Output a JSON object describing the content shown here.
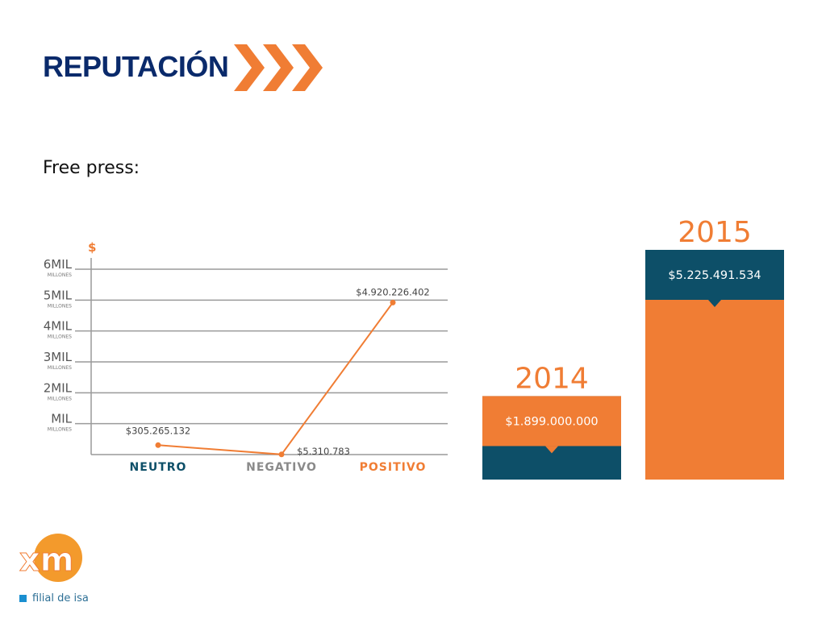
{
  "header": {
    "title": "REPUTACIÓN"
  },
  "subtitle": "Free press:",
  "colors": {
    "orange": "#f07d34",
    "teal": "#0d4f68",
    "navy": "#0a2a6b",
    "grid": "#9a9a9a"
  },
  "chart_data": [
    {
      "type": "line",
      "currency_symbol": "$",
      "categories": [
        "NEUTRO",
        "NEGATIVO",
        "POSITIVO"
      ],
      "values": [
        305265132,
        5310783,
        4920226402
      ],
      "data_labels": [
        "$305.265.132",
        "$5.310.783",
        "$4.920.226.402"
      ],
      "ylim": [
        0,
        6000000000
      ],
      "y_ticks": [
        {
          "value": 1000000000,
          "label": "MIL",
          "unit": "MILLONES"
        },
        {
          "value": 2000000000,
          "label": "2MIL",
          "unit": "MILLONES"
        },
        {
          "value": 3000000000,
          "label": "3MIL",
          "unit": "MILLONES"
        },
        {
          "value": 4000000000,
          "label": "4MIL",
          "unit": "MILLONES"
        },
        {
          "value": 5000000000,
          "label": "5MIL",
          "unit": "MILLONES"
        },
        {
          "value": 6000000000,
          "label": "6MIL",
          "unit": "MILLONES"
        }
      ],
      "category_colors": [
        "#0d4f68",
        "#8a8a8a",
        "#f07d34"
      ],
      "grid": true
    },
    {
      "type": "bar",
      "categories": [
        "2014",
        "2015"
      ],
      "values": [
        1899000000,
        5225491534
      ],
      "value_labels": [
        "$1.899.000.000",
        "$5.225.491.534"
      ],
      "grid": false
    }
  ],
  "logo": {
    "mark": "xm",
    "caption": "filial de isa"
  }
}
